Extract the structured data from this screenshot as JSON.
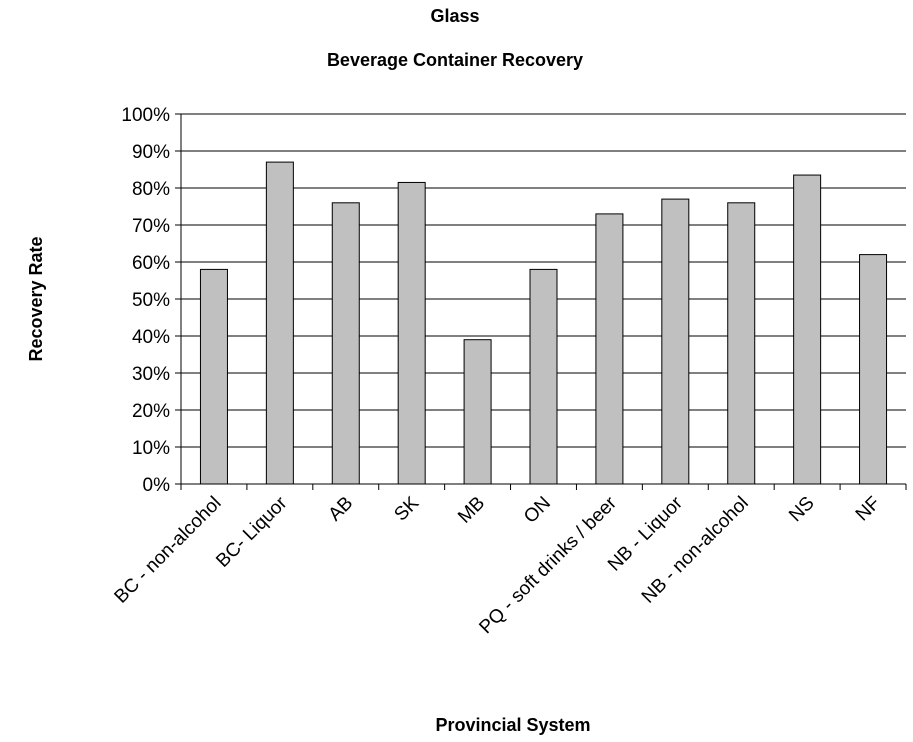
{
  "chart_data": {
    "type": "bar",
    "title": "Glass",
    "subtitle": "Beverage Container Recovery",
    "x_label": "Provincial System",
    "y_label": "Recovery Rate",
    "categories": [
      "BC - non-alcohol",
      "BC- Liquor",
      "AB",
      "SK",
      "MB",
      "ON",
      "PQ - soft drinks / beer",
      "NB - Liquor",
      "NB - non-alcohol",
      "NS",
      "NF"
    ],
    "values": [
      58,
      87,
      76,
      81.5,
      39,
      58,
      73,
      77,
      76,
      83.5,
      62
    ],
    "color": "#c0c0c0",
    "ylim": [
      0,
      100
    ],
    "yticks": [
      {
        "value": 0,
        "label": "0%"
      },
      {
        "value": 10,
        "label": "10%"
      },
      {
        "value": 20,
        "label": "20%"
      },
      {
        "value": 30,
        "label": "30%"
      },
      {
        "value": 40,
        "label": "40%"
      },
      {
        "value": 50,
        "label": "50%"
      },
      {
        "value": 60,
        "label": "60%"
      },
      {
        "value": 70,
        "label": "70%"
      },
      {
        "value": 80,
        "label": "80%"
      },
      {
        "value": 90,
        "label": "90%"
      },
      {
        "value": 100,
        "label": "100%"
      }
    ],
    "grid": true
  }
}
